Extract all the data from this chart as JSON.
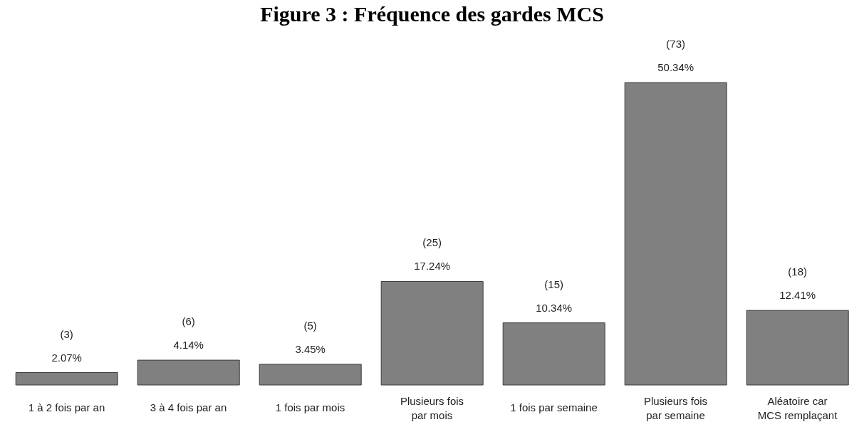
{
  "chart_data": {
    "type": "bar",
    "title": "Figure 3 : Fréquence des gardes MCS",
    "categories": [
      "1 à 2 fois par an",
      "3 à 4 fois par an",
      "1 fois par mois",
      "Plusieurs fois\npar mois",
      "1 fois par semaine",
      "Plusieurs fois\npar semaine",
      "Aléatoire car\nMCS remplaçant"
    ],
    "values": [
      3,
      6,
      5,
      25,
      15,
      73,
      18
    ],
    "color": "#808080",
    "value_labels": [
      "(3)\n2.07%",
      "(6)\n4.14%",
      "(5)\n3.45%",
      "(25)\n17.24%",
      "(15)\n10.34%",
      "(73)\n50.34%",
      "(18)\n12.41%"
    ]
  }
}
